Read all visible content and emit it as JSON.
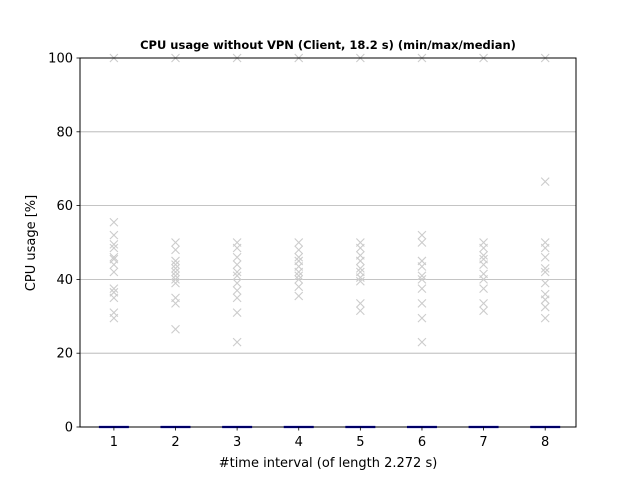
{
  "chart_data": {
    "type": "scatter",
    "title": "CPU usage without VPN (Client, 18.2 s) (min/max/median)",
    "xlabel": "#time interval (of length 2.272 s)",
    "ylabel": "CPU usage [%]",
    "x_ticks": [
      "1",
      "2",
      "3",
      "4",
      "5",
      "6",
      "7",
      "8"
    ],
    "xlim": [
      0.45,
      8.5
    ],
    "ylim": [
      0,
      100
    ],
    "y_ticks": [
      0,
      20,
      40,
      60,
      80,
      100
    ],
    "grid": "horizontal",
    "series": [
      {
        "marker": "x",
        "color": "#cccccc",
        "points": [
          [
            1,
            100
          ],
          [
            1,
            55.5
          ],
          [
            1,
            52
          ],
          [
            1,
            49.5
          ],
          [
            1,
            48.5
          ],
          [
            1,
            46
          ],
          [
            1,
            45.5
          ],
          [
            1,
            44
          ],
          [
            1,
            42
          ],
          [
            1,
            37.5
          ],
          [
            1,
            36.5
          ],
          [
            1,
            35
          ],
          [
            1,
            31
          ],
          [
            1,
            29.5
          ],
          [
            2,
            100
          ],
          [
            2,
            50
          ],
          [
            2,
            48
          ],
          [
            2,
            45
          ],
          [
            2,
            44
          ],
          [
            2,
            43
          ],
          [
            2,
            42
          ],
          [
            2,
            41
          ],
          [
            2,
            40
          ],
          [
            2,
            39
          ],
          [
            2,
            35
          ],
          [
            2,
            33.5
          ],
          [
            2,
            26.5
          ],
          [
            3,
            100
          ],
          [
            3,
            50
          ],
          [
            3,
            48.5
          ],
          [
            3,
            46
          ],
          [
            3,
            44
          ],
          [
            3,
            42
          ],
          [
            3,
            41
          ],
          [
            3,
            39
          ],
          [
            3,
            37
          ],
          [
            3,
            35
          ],
          [
            3,
            31
          ],
          [
            3,
            23
          ],
          [
            4,
            100
          ],
          [
            4,
            50
          ],
          [
            4,
            48
          ],
          [
            4,
            46
          ],
          [
            4,
            45
          ],
          [
            4,
            43.5
          ],
          [
            4,
            42
          ],
          [
            4,
            41
          ],
          [
            4,
            40
          ],
          [
            4,
            38
          ],
          [
            4,
            35.5
          ],
          [
            5,
            100
          ],
          [
            5,
            50
          ],
          [
            5,
            48.5
          ],
          [
            5,
            46.5
          ],
          [
            5,
            45
          ],
          [
            5,
            43
          ],
          [
            5,
            42
          ],
          [
            5,
            40.5
          ],
          [
            5,
            39.5
          ],
          [
            5,
            33.5
          ],
          [
            5,
            31.5
          ],
          [
            6,
            100
          ],
          [
            6,
            52
          ],
          [
            6,
            50
          ],
          [
            6,
            45
          ],
          [
            6,
            43.5
          ],
          [
            6,
            41
          ],
          [
            6,
            40
          ],
          [
            6,
            37.5
          ],
          [
            6,
            33.5
          ],
          [
            6,
            29.5
          ],
          [
            6,
            23
          ],
          [
            7,
            100
          ],
          [
            7,
            50
          ],
          [
            7,
            48.5
          ],
          [
            7,
            46.5
          ],
          [
            7,
            45.5
          ],
          [
            7,
            44
          ],
          [
            7,
            41.5
          ],
          [
            7,
            40
          ],
          [
            7,
            37.5
          ],
          [
            7,
            33.5
          ],
          [
            7,
            31.5
          ],
          [
            8,
            100
          ],
          [
            8,
            66.5
          ],
          [
            8,
            50
          ],
          [
            8,
            48.5
          ],
          [
            8,
            46
          ],
          [
            8,
            43
          ],
          [
            8,
            42
          ],
          [
            8,
            39
          ],
          [
            8,
            36
          ],
          [
            8,
            34.5
          ],
          [
            8,
            32.5
          ],
          [
            8,
            29.5
          ]
        ]
      },
      {
        "marker": "hline",
        "color": "#0000cc",
        "points": [
          [
            1,
            0
          ],
          [
            2,
            0
          ],
          [
            3,
            0
          ],
          [
            4,
            0
          ],
          [
            5,
            0
          ],
          [
            6,
            0
          ],
          [
            7,
            0
          ],
          [
            8,
            0
          ]
        ]
      }
    ]
  }
}
